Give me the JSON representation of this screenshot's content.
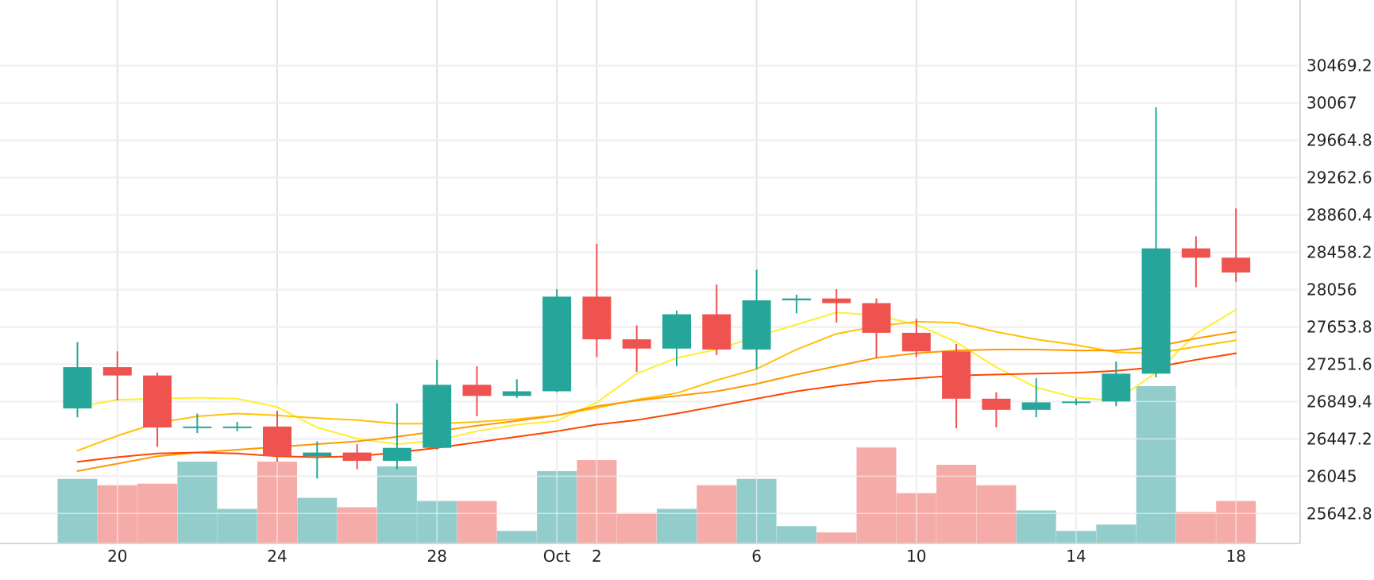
{
  "chart_data": {
    "type": "candlestick",
    "colors": {
      "up": "#26a69a",
      "down": "#ef5350",
      "volume_up": "#92cdcb",
      "volume_down": "#f5aba8",
      "grid": "#e3e3e3",
      "ma": [
        "#ffee33",
        "#ffc107",
        "#ff9800",
        "#ff4500"
      ]
    },
    "grid": true,
    "y_axis_position": "right",
    "ylim": [
      25320,
      30920
    ],
    "y_ticks": [
      "25642.8",
      "26045",
      "26447.2",
      "26849.4",
      "27251.6",
      "27653.8",
      "28056",
      "28458.2",
      "28860.4",
      "29262.6",
      "29664.8",
      "30067",
      "30469.2"
    ],
    "x_ticks": [
      {
        "date": "2023-09-20",
        "label": "20"
      },
      {
        "date": "2023-09-24",
        "label": "24"
      },
      {
        "date": "2023-09-28",
        "label": "28"
      },
      {
        "date": "2023-10-01",
        "label": "Oct"
      },
      {
        "date": "2023-10-02",
        "label": "2"
      },
      {
        "date": "2023-10-06",
        "label": "6"
      },
      {
        "date": "2023-10-10",
        "label": "10"
      },
      {
        "date": "2023-10-14",
        "label": "14"
      },
      {
        "date": "2023-10-18",
        "label": "18"
      }
    ],
    "candles": [
      {
        "date": "2023-09-19",
        "open": 26775,
        "high": 27490,
        "low": 26680,
        "close": 27220
      },
      {
        "date": "2023-09-20",
        "open": 27220,
        "high": 27390,
        "low": 26860,
        "close": 27130
      },
      {
        "date": "2023-09-21",
        "open": 27130,
        "high": 27160,
        "low": 26360,
        "close": 26570
      },
      {
        "date": "2023-09-22",
        "open": 26570,
        "high": 26720,
        "low": 26510,
        "close": 26580
      },
      {
        "date": "2023-09-23",
        "open": 26580,
        "high": 26630,
        "low": 26530,
        "close": 26580
      },
      {
        "date": "2023-09-24",
        "open": 26580,
        "high": 26750,
        "low": 26200,
        "close": 26260
      },
      {
        "date": "2023-09-25",
        "open": 26260,
        "high": 26420,
        "low": 26020,
        "close": 26300
      },
      {
        "date": "2023-09-26",
        "open": 26300,
        "high": 26390,
        "low": 26120,
        "close": 26210
      },
      {
        "date": "2023-09-27",
        "open": 26210,
        "high": 26830,
        "low": 26120,
        "close": 26350
      },
      {
        "date": "2023-09-28",
        "open": 26350,
        "high": 27300,
        "low": 26330,
        "close": 27030
      },
      {
        "date": "2023-09-29",
        "open": 27030,
        "high": 27230,
        "low": 26690,
        "close": 26910
      },
      {
        "date": "2023-09-30",
        "open": 26910,
        "high": 27090,
        "low": 26890,
        "close": 26960
      },
      {
        "date": "2023-10-01",
        "open": 26960,
        "high": 28060,
        "low": 26950,
        "close": 27980
      },
      {
        "date": "2023-10-02",
        "open": 27980,
        "high": 28550,
        "low": 27330,
        "close": 27520
      },
      {
        "date": "2023-10-03",
        "open": 27520,
        "high": 27670,
        "low": 27170,
        "close": 27420
      },
      {
        "date": "2023-10-04",
        "open": 27420,
        "high": 27830,
        "low": 27230,
        "close": 27790
      },
      {
        "date": "2023-10-05",
        "open": 27790,
        "high": 28110,
        "low": 27350,
        "close": 27410
      },
      {
        "date": "2023-10-06",
        "open": 27410,
        "high": 28270,
        "low": 27200,
        "close": 27940
      },
      {
        "date": "2023-10-07",
        "open": 27940,
        "high": 28000,
        "low": 27800,
        "close": 27960
      },
      {
        "date": "2023-10-08",
        "open": 27960,
        "high": 28060,
        "low": 27700,
        "close": 27910
      },
      {
        "date": "2023-10-09",
        "open": 27910,
        "high": 27960,
        "low": 27320,
        "close": 27590
      },
      {
        "date": "2023-10-10",
        "open": 27590,
        "high": 27740,
        "low": 27330,
        "close": 27390
      },
      {
        "date": "2023-10-11",
        "open": 27390,
        "high": 27470,
        "low": 26560,
        "close": 26880
      },
      {
        "date": "2023-10-12",
        "open": 26880,
        "high": 26950,
        "low": 26570,
        "close": 26760
      },
      {
        "date": "2023-10-13",
        "open": 26760,
        "high": 27100,
        "low": 26680,
        "close": 26840
      },
      {
        "date": "2023-10-14",
        "open": 26840,
        "high": 26880,
        "low": 26810,
        "close": 26850
      },
      {
        "date": "2023-10-15",
        "open": 26850,
        "high": 27280,
        "low": 26800,
        "close": 27150
      },
      {
        "date": "2023-10-16",
        "open": 27150,
        "high": 30020,
        "low": 27110,
        "close": 28500
      },
      {
        "date": "2023-10-17",
        "open": 28500,
        "high": 28630,
        "low": 28080,
        "close": 28400
      },
      {
        "date": "2023-10-18",
        "open": 28400,
        "high": 28930,
        "low": 28140,
        "close": 28240
      }
    ],
    "volume": [
      0.41,
      0.37,
      0.38,
      0.52,
      0.22,
      0.52,
      0.29,
      0.23,
      0.49,
      0.27,
      0.27,
      0.08,
      0.46,
      0.53,
      0.19,
      0.22,
      0.37,
      0.41,
      0.11,
      0.07,
      0.61,
      0.32,
      0.5,
      0.37,
      0.21,
      0.08,
      0.12,
      1.0,
      0.2,
      0.27
    ],
    "moving_averages": [
      {
        "values": [
          26790,
          26870,
          26880,
          26890,
          26880,
          26790,
          26570,
          26450,
          26390,
          26430,
          26530,
          26600,
          26640,
          26840,
          27150,
          27320,
          27410,
          27550,
          27680,
          27810,
          27780,
          27680,
          27490,
          27220,
          27000,
          26890,
          26860,
          27160,
          27580,
          27840
        ]
      },
      {
        "values": [
          26320,
          26480,
          26620,
          26690,
          26720,
          26700,
          26670,
          26650,
          26610,
          26610,
          26630,
          26660,
          26700,
          26780,
          26870,
          26940,
          27080,
          27200,
          27410,
          27580,
          27660,
          27710,
          27700,
          27600,
          27520,
          27460,
          27380,
          27370,
          27440,
          27510
        ]
      },
      {
        "values": [
          26100,
          26180,
          26260,
          26300,
          26330,
          26360,
          26390,
          26420,
          26470,
          26530,
          26590,
          26640,
          26700,
          26800,
          26860,
          26910,
          26960,
          27040,
          27140,
          27230,
          27320,
          27370,
          27400,
          27410,
          27410,
          27400,
          27400,
          27440,
          27530,
          27600
        ]
      },
      {
        "values": [
          26200,
          26250,
          26290,
          26300,
          26290,
          26260,
          26250,
          26260,
          26300,
          26350,
          26410,
          26470,
          26530,
          26600,
          26650,
          26720,
          26800,
          26880,
          26960,
          27020,
          27070,
          27100,
          27130,
          27140,
          27150,
          27160,
          27180,
          27220,
          27300,
          27370
        ]
      }
    ]
  }
}
